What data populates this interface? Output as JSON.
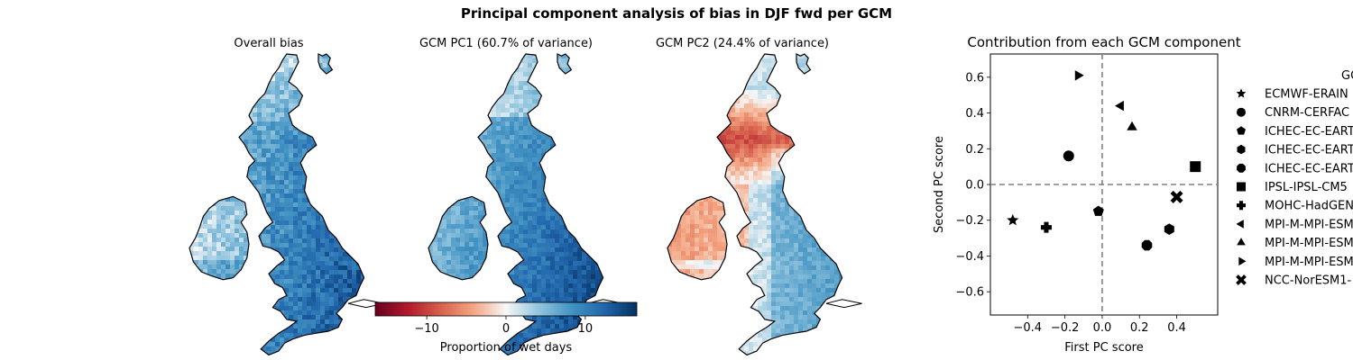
{
  "figure_title": "Principal component analysis of bias in DJF fwd per GCM",
  "maps": [
    {
      "title": "Overall bias",
      "pattern": "overall"
    },
    {
      "title": "GCM PC1 (60.7% of variance)",
      "pattern": "pc1"
    },
    {
      "title": "GCM PC2 (24.4% of variance)",
      "pattern": "pc2"
    }
  ],
  "colorbar": {
    "label": "Proportion of wet days",
    "colormap": "RdBu",
    "range": [
      -16.5,
      16.5
    ],
    "ticks": [
      -10,
      0,
      10
    ],
    "tick_labels": [
      "−10",
      "0",
      "10"
    ]
  },
  "chart_data": {
    "type": "scatter",
    "title": "Contribution from each GCM component",
    "xlabel": "First PC score",
    "ylabel": "Second PC score",
    "xlim": [
      -0.6,
      0.62
    ],
    "ylim": [
      -0.73,
      0.73
    ],
    "xticks": [
      -0.4,
      -0.2,
      0.0,
      0.2,
      0.4
    ],
    "xtick_labels": [
      "−0.4",
      "−0.2",
      "0.0",
      "0.2",
      "0.4"
    ],
    "yticks": [
      -0.6,
      -0.4,
      -0.2,
      0.0,
      0.2,
      0.4,
      0.6
    ],
    "ytick_labels": [
      "−0.6",
      "−0.4",
      "−0.2",
      "0.0",
      "0.2",
      "0.4",
      "0.6"
    ],
    "reference_lines": {
      "x": 0,
      "y": 0,
      "style": "dashed",
      "color": "#808080"
    },
    "legend": {
      "title": "GC",
      "placement": "outside-right"
    },
    "series": [
      {
        "name": "ECMWF-ERAIN",
        "marker": "star",
        "x": -0.48,
        "y": -0.2
      },
      {
        "name": "CNRM-CERFAC",
        "marker": "circle",
        "x": -0.18,
        "y": 0.16
      },
      {
        "name": "ICHEC-EC-EART",
        "marker": "pentagon",
        "x": -0.02,
        "y": -0.15
      },
      {
        "name": "ICHEC-EC-EART",
        "marker": "hexagon",
        "x": 0.36,
        "y": -0.25
      },
      {
        "name": "ICHEC-EC-EART",
        "marker": "octagon",
        "x": 0.24,
        "y": -0.34
      },
      {
        "name": "IPSL-IPSL-CM5",
        "marker": "square",
        "x": 0.5,
        "y": 0.1
      },
      {
        "name": "MOHC-HadGEN",
        "marker": "plus",
        "x": -0.3,
        "y": -0.24
      },
      {
        "name": "MPI-M-MPI-ESM",
        "marker": "triangle-left",
        "x": 0.1,
        "y": 0.44
      },
      {
        "name": "MPI-M-MPI-ESM",
        "marker": "triangle-up",
        "x": 0.16,
        "y": 0.32
      },
      {
        "name": "MPI-M-MPI-ESM",
        "marker": "triangle-right",
        "x": -0.13,
        "y": 0.61
      },
      {
        "name": "NCC-NorESM1-",
        "marker": "x",
        "x": 0.4,
        "y": -0.07
      }
    ]
  }
}
